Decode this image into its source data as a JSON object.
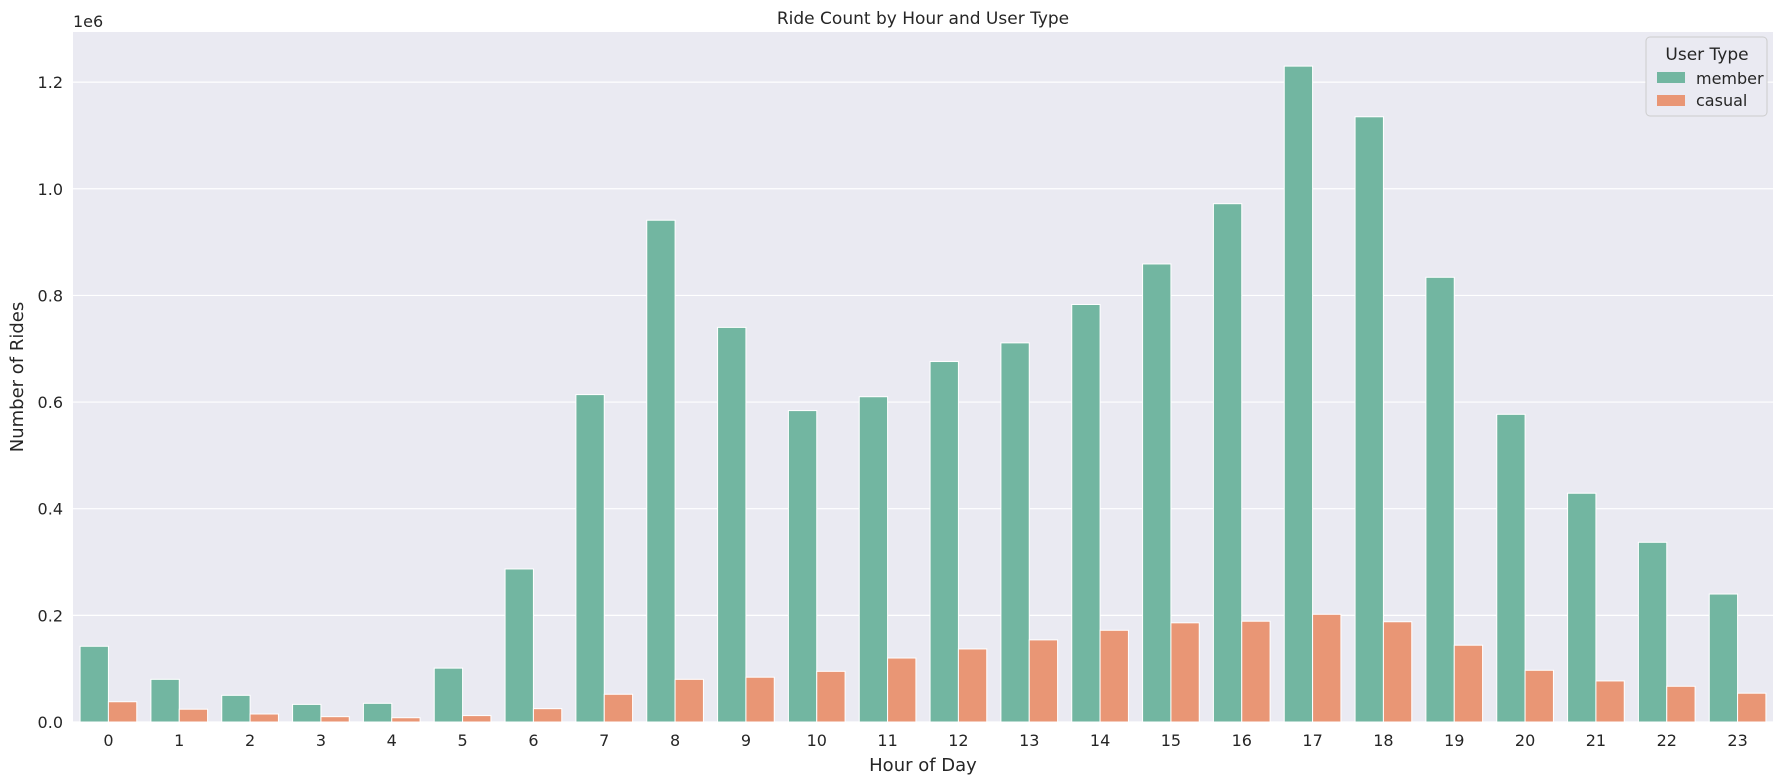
{
  "chart_data": {
    "type": "bar",
    "title": "Ride Count by Hour and User Type",
    "xlabel": "Hour of Day",
    "ylabel": "Number of Rides",
    "y_offset_label": "1e6",
    "ylim": [
      0,
      1.294
    ],
    "yticks": [
      0.0,
      0.2,
      0.4,
      0.6,
      0.8,
      1.0,
      1.2
    ],
    "ytick_labels": [
      "0.0",
      "0.2",
      "0.4",
      "0.6",
      "0.8",
      "1.0",
      "1.2"
    ],
    "categories": [
      "0",
      "1",
      "2",
      "3",
      "4",
      "5",
      "6",
      "7",
      "8",
      "9",
      "10",
      "11",
      "12",
      "13",
      "14",
      "15",
      "16",
      "17",
      "18",
      "19",
      "20",
      "21",
      "22",
      "23"
    ],
    "series": [
      {
        "name": "member",
        "color": "#72b6a1",
        "values": [
          0.142,
          0.08,
          0.05,
          0.033,
          0.035,
          0.101,
          0.287,
          0.614,
          0.941,
          0.74,
          0.584,
          0.61,
          0.676,
          0.711,
          0.783,
          0.859,
          0.972,
          1.23,
          1.135,
          0.834,
          0.577,
          0.429,
          0.337,
          0.24
        ]
      },
      {
        "name": "casual",
        "color": "#e99675",
        "values": [
          0.038,
          0.024,
          0.015,
          0.01,
          0.008,
          0.012,
          0.025,
          0.052,
          0.08,
          0.084,
          0.095,
          0.12,
          0.137,
          0.154,
          0.172,
          0.186,
          0.189,
          0.202,
          0.188,
          0.144,
          0.097,
          0.077,
          0.067,
          0.054
        ]
      }
    ],
    "legend": {
      "title": "User Type",
      "position": "top-right"
    },
    "grid": true,
    "background_color": "#eaeaf2",
    "grid_color": "#ffffff"
  }
}
